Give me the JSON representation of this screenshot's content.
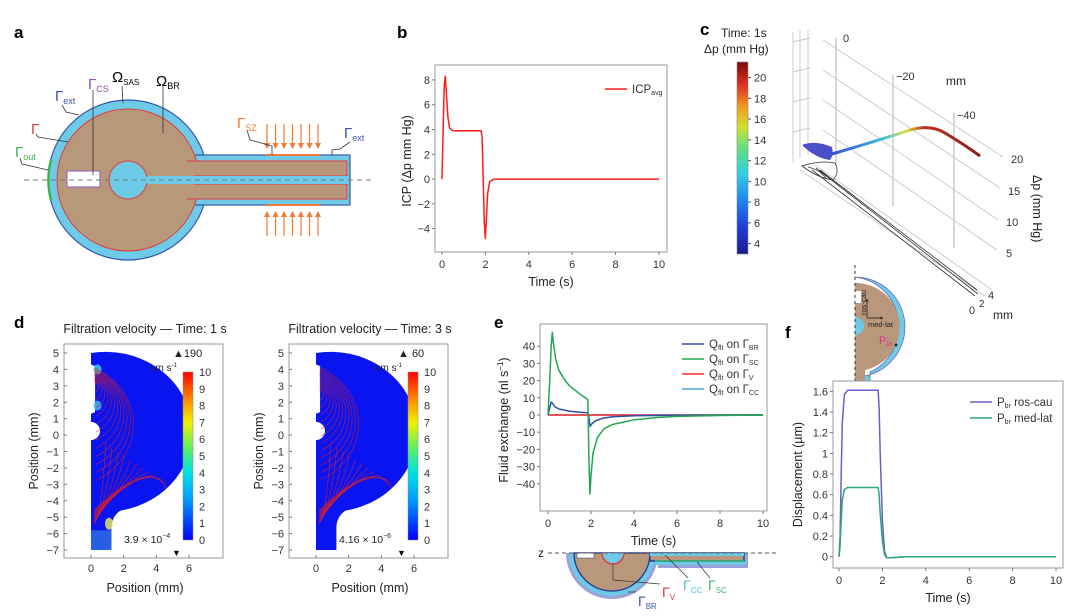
{
  "panels": {
    "a": {
      "label": "a",
      "annotations": [
        {
          "main": "Ω",
          "sub": "SAS",
          "color": "#222222"
        },
        {
          "main": "Ω",
          "sub": "BR",
          "color": "#222222"
        },
        {
          "main": "Γ",
          "sub": "CS",
          "color": "#8a4fb0"
        },
        {
          "main": "Γ",
          "sub": "ext",
          "color": "#3a55a8"
        },
        {
          "main": "Γ",
          "sub": "",
          "color": "#e03a3a"
        },
        {
          "main": "Γ",
          "sub": "out",
          "color": "#3cb44b"
        },
        {
          "main": "Γ",
          "sub": "SZ",
          "color": "#f07a3a"
        },
        {
          "main": "Γ",
          "sub": "ext",
          "color": "#3a55a8"
        }
      ]
    },
    "b": {
      "label": "b"
    },
    "c": {
      "label": "c",
      "time_label": "Time: 1s",
      "colorbar_title": "Δp (mm Hg)",
      "colorbar_ticks": [
        "20",
        "18",
        "16",
        "14",
        "12",
        "10",
        "8",
        "6",
        "4"
      ],
      "axis_ticks_mm": [
        "0",
        "−20",
        "−40"
      ],
      "axis_unit_top": "mm",
      "dp_ticks": [
        "20",
        "15",
        "10",
        "5"
      ],
      "dp_axis_label": "Δp (mm Hg)",
      "bottom_ticks": [
        "0",
        "2",
        "4"
      ],
      "bottom_unit": "mm"
    },
    "d": {
      "label": "d",
      "plots": [
        {
          "title": "Filtration velocity — Time: 1 s",
          "max_label": "▲190",
          "unit": "nm s",
          "unit_sup": "-1",
          "min_label": "3.9 × 10",
          "min_sup": "−4",
          "min_arrow": "▼"
        },
        {
          "title": "Filtration velocity — Time: 3 s",
          "max_label": "▲ 60",
          "unit": "nm s",
          "unit_sup": "-1",
          "min_label": "4.16 × 10",
          "min_sup": "−6",
          "min_arrow": "▼"
        }
      ],
      "colorbar_ticks": [
        "10",
        "9",
        "8",
        "7",
        "6",
        "5",
        "4",
        "3",
        "2",
        "1",
        "0"
      ],
      "y_ticks": [
        "5",
        "4",
        "3",
        "2",
        "1",
        "0",
        "−1",
        "−2",
        "−3",
        "−4",
        "−5",
        "−6",
        "−7"
      ],
      "x_ticks": [
        "0",
        "2",
        "4",
        "6"
      ],
      "xlabel": "Position (mm)",
      "ylabel": "Position (mm)"
    },
    "e": {
      "label": "e",
      "schematic": {
        "axis": "z",
        "labels": [
          {
            "main": "Γ",
            "sub": "BR",
            "color": "#3a55a8"
          },
          {
            "main": "Γ",
            "sub": "V",
            "color": "#e03a3a"
          },
          {
            "main": "Γ",
            "sub": "CC",
            "color": "#4fc3e8"
          },
          {
            "main": "Γ",
            "sub": "SC",
            "color": "#3cb46e"
          }
        ]
      }
    },
    "f": {
      "label": "f",
      "schematic": {
        "dir1": "ros-cau",
        "dir2": "med-lat",
        "point": "P",
        "point_sub": "br",
        "point_color": "#e0348a"
      }
    }
  },
  "chart_data": [
    {
      "id": "b",
      "type": "line",
      "xlabel": "Time (s)",
      "ylabel": "ICP (Δp mm Hg)",
      "xlim": [
        0,
        10
      ],
      "ylim": [
        -5.2,
        8.8
      ],
      "xticks": [
        0,
        2,
        4,
        6,
        8,
        10
      ],
      "yticks": [
        8,
        6,
        4,
        2,
        0,
        -2,
        -4
      ],
      "legend": "top-right",
      "series": [
        {
          "name": "ICP",
          "name_sub": "avg",
          "color": "#ff1a1a",
          "x": [
            0,
            0.05,
            0.1,
            0.15,
            0.2,
            0.27,
            0.35,
            0.5,
            1,
            1.8,
            1.85,
            1.9,
            1.95,
            2.0,
            2.05,
            2.1,
            2.2,
            2.4,
            3,
            10
          ],
          "y": [
            0,
            4,
            7.5,
            8.3,
            7,
            5,
            4.1,
            3.9,
            3.9,
            3.9,
            3.4,
            0,
            -3.5,
            -4.8,
            -3,
            -1.2,
            -0.2,
            0,
            0,
            0
          ]
        }
      ]
    },
    {
      "id": "e",
      "type": "line",
      "xlabel": "Time (s)",
      "ylabel": "Fluid exchange (nl s",
      "ylabel_sup": "−1",
      "ylabel_end": ")",
      "xlim": [
        0,
        10
      ],
      "ylim": [
        -50,
        50
      ],
      "xticks": [
        0,
        2,
        4,
        6,
        8,
        10
      ],
      "yticks": [
        40,
        30,
        20,
        10,
        0,
        -10,
        -20,
        -30,
        -40
      ],
      "legend": "top-right",
      "series": [
        {
          "name": "Q",
          "name_sub": "flt",
          "on": " on Γ",
          "on_sub": "BR",
          "color": "#2f4fa8",
          "x": [
            0,
            0.08,
            0.15,
            0.2,
            0.3,
            0.5,
            1,
            1.5,
            1.85,
            1.88,
            1.92,
            1.96,
            2.05,
            2.2,
            2.5,
            3,
            4,
            6,
            10
          ],
          "y": [
            0,
            4,
            7.5,
            7,
            5,
            3.5,
            2.2,
            1.6,
            1.3,
            0,
            -3,
            -6.5,
            -5,
            -3.5,
            -2,
            -1,
            -0.4,
            -0.1,
            0
          ]
        },
        {
          "name": "Q",
          "name_sub": "flt",
          "on": " on Γ",
          "on_sub": "SC",
          "color": "#1fa84f",
          "x": [
            0,
            0.08,
            0.15,
            0.2,
            0.25,
            0.35,
            0.5,
            0.8,
            1,
            1.5,
            1.85,
            1.87,
            1.9,
            1.95,
            2.0,
            2.1,
            2.3,
            2.6,
            3,
            4,
            5,
            6,
            8,
            10
          ],
          "y": [
            0,
            20,
            40,
            48,
            42,
            33,
            26,
            20,
            17,
            12,
            9,
            0,
            -25,
            -46,
            -35,
            -22,
            -13,
            -8,
            -5.5,
            -2.8,
            -1.5,
            -0.8,
            -0.3,
            0
          ]
        },
        {
          "name": "Q",
          "name_sub": "flt",
          "on": " on Γ",
          "on_sub": "V",
          "color": "#ff2a2a",
          "x": [
            0,
            10
          ],
          "y": [
            0,
            0
          ]
        },
        {
          "name": "Q",
          "name_sub": "flt",
          "on": " on Γ",
          "on_sub": "CC",
          "color": "#4aa8e0",
          "x": [
            0,
            10
          ],
          "y": [
            0,
            0
          ]
        }
      ]
    },
    {
      "id": "f",
      "type": "line",
      "xlabel": "Time (s)",
      "ylabel": "Displacement (µm)",
      "xlim": [
        0,
        10
      ],
      "ylim": [
        -0.08,
        1.7
      ],
      "xticks": [
        0,
        2,
        4,
        6,
        8,
        10
      ],
      "yticks": [
        0,
        0.2,
        0.4,
        0.6,
        0.8,
        1,
        1.2,
        1.4,
        1.6
      ],
      "ytick_labels": [
        "0",
        "0.2",
        "0.4",
        "0.6",
        "0.8",
        "1",
        "1.2",
        "1.4",
        "1.6"
      ],
      "legend": "top-right",
      "series": [
        {
          "name": "P",
          "name_sub": "br",
          "suffix": " ros-cau",
          "color": "#6a5fc8",
          "x": [
            0,
            0.05,
            0.1,
            0.15,
            0.25,
            0.4,
            0.6,
            1,
            1.8,
            1.85,
            1.9,
            2.0,
            2.1,
            2.2,
            2.4,
            3,
            10
          ],
          "y": [
            0,
            0.2,
            0.8,
            1.3,
            1.57,
            1.61,
            1.61,
            1.61,
            1.61,
            1.45,
            1.0,
            0.35,
            0.05,
            -0.01,
            -0.01,
            0,
            0
          ]
        },
        {
          "name": "P",
          "name_sub": "br",
          "suffix": " med-lat",
          "color": "#2aa878",
          "x": [
            0,
            0.05,
            0.1,
            0.15,
            0.25,
            0.4,
            0.6,
            1,
            1.8,
            1.85,
            1.9,
            2.0,
            2.1,
            2.2,
            2.4,
            3,
            10
          ],
          "y": [
            0,
            0.1,
            0.35,
            0.55,
            0.65,
            0.67,
            0.67,
            0.67,
            0.67,
            0.6,
            0.42,
            0.15,
            0.02,
            -0.01,
            -0.01,
            0,
            0
          ]
        }
      ]
    },
    {
      "id": "c",
      "type": "line",
      "colorbar_range": [
        3,
        21.5
      ]
    }
  ]
}
